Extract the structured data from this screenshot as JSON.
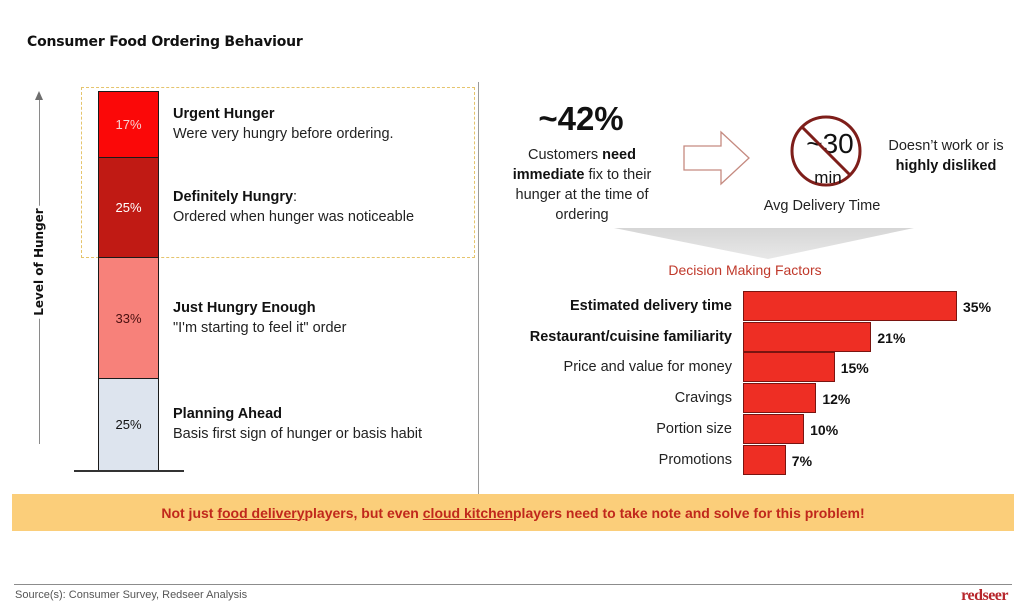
{
  "title": "Consumer Food Ordering Behaviour",
  "axis_label": "Level of Hunger",
  "hunger_segments": [
    {
      "value": 17,
      "label": "17%",
      "heading": "Urgent Hunger",
      "heading_suffix": "",
      "description": "Were very hungry before ordering.",
      "color": "#fb0808",
      "text_color": "#f6d3d3"
    },
    {
      "value": 25,
      "label": "25%",
      "heading": "Definitely Hungry",
      "heading_suffix": ":",
      "description": "Ordered when hunger was noticeable",
      "color": "#c01a14",
      "text_color": "#ffffff"
    },
    {
      "value": 33,
      "label": "33%",
      "heading": "Just Hungry Enough",
      "heading_suffix": "",
      "description": "\"I'm starting to feel it\" order",
      "color": "#f7817a",
      "text_color": "#4a1010"
    },
    {
      "value": 25,
      "label": "25%",
      "heading": "Planning Ahead",
      "heading_suffix": "",
      "description": "Basis first sign of hunger or basis habit",
      "color": "#dde4ee",
      "text_color": "#111111"
    }
  ],
  "highlight": {
    "big_value": "~42%",
    "text_pre": "Customers ",
    "text_bold1": "need immediate",
    "text_post": " fix to their hunger at the time of ordering"
  },
  "delivery": {
    "sign_number": "~30",
    "sign_unit": "min",
    "label": "Avg Delivery Time",
    "verdict_pre": "Doesn’t work or is",
    "verdict_bold": "highly disliked"
  },
  "chart_data": {
    "type": "bar",
    "orientation": "horizontal",
    "title": "Decision Making Factors",
    "categories": [
      "Estimated delivery time",
      "Restaurant/cuisine familiarity",
      "Price and value for money",
      "Cravings",
      "Portion size",
      "Promotions"
    ],
    "values": [
      35,
      21,
      15,
      12,
      10,
      7
    ],
    "value_labels": [
      "35%",
      "21%",
      "15%",
      "12%",
      "10%",
      "7%"
    ],
    "bold_categories": [
      true,
      true,
      false,
      false,
      false,
      false
    ],
    "unit": "%",
    "xlim": [
      0,
      35
    ],
    "grid": false,
    "bar_color": "#ee2e24"
  },
  "banner": {
    "part1": "Not just ",
    "link1": "food delivery ",
    "part2": "players, but even ",
    "link2": "cloud kitchen ",
    "part3": "players need to take note and solve for this problem!"
  },
  "footer": {
    "source": "Source(s): Consumer Survey, Redseer Analysis",
    "logo": "redseer"
  }
}
